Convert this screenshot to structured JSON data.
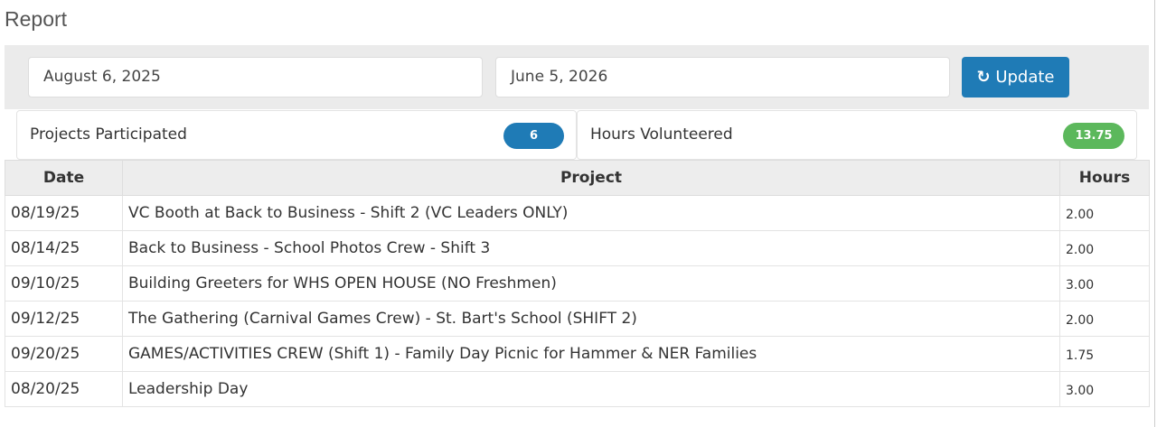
{
  "page": {
    "title": "Report"
  },
  "filter": {
    "start_date": "August 6, 2025",
    "end_date": "June 5, 2026",
    "update_label": "Update",
    "update_icon": "refresh-icon",
    "accent": "#1f7bb6"
  },
  "summary": {
    "projects": {
      "label": "Projects Participated",
      "value": "6",
      "color": "#1f7bb6"
    },
    "hours": {
      "label": "Hours Volunteered",
      "value": "13.75",
      "color": "#5cb85c"
    }
  },
  "table": {
    "headers": [
      "Date",
      "Project",
      "Hours"
    ],
    "rows": [
      [
        "08/19/25",
        "VC Booth at Back to Business - Shift 2 (VC Leaders ONLY)",
        "2.00"
      ],
      [
        "08/14/25",
        "Back to Business - School Photos Crew - Shift 3",
        "2.00"
      ],
      [
        "09/10/25",
        "Building Greeters for WHS OPEN HOUSE (NO Freshmen)",
        "3.00"
      ],
      [
        "09/12/25",
        "The Gathering (Carnival Games Crew) - St. Bart's School (SHIFT 2)",
        "2.00"
      ],
      [
        "09/20/25",
        "GAMES/ACTIVITIES CREW (Shift 1) - Family Day Picnic for Hammer & NER Families",
        "1.75"
      ],
      [
        "08/20/25",
        "Leadership Day",
        "3.00"
      ]
    ]
  }
}
